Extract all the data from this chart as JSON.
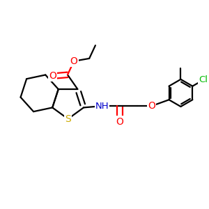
{
  "bg_color": "#ffffff",
  "atom_colors": {
    "C": "#000000",
    "H": "#000000",
    "O": "#ff0000",
    "N": "#0000cc",
    "S": "#ccaa00",
    "Cl": "#00bb00"
  },
  "bond_color": "#000000",
  "bond_width": 1.6,
  "figsize": [
    3.0,
    3.0
  ],
  "dpi": 100
}
